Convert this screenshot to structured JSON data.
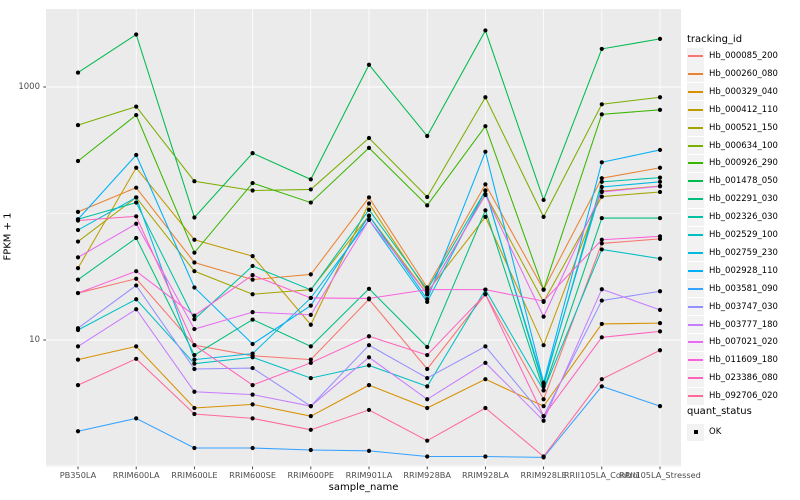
{
  "figure": {
    "legend": {
      "tracking_title": "tracking_id",
      "quant_title": "quant_status",
      "quant_ok_label": "OK"
    },
    "colors": {
      "panel_background": "#EBEBEB",
      "gridline": "#FFFFFF",
      "point": "#000000",
      "tick_text": "#4D4D4D",
      "legend_key_background": "#F2F2F2"
    }
  },
  "chart_data": {
    "type": "line",
    "title": "",
    "xlabel": "sample_name",
    "ylabel": "FPKM + 1",
    "y_scale": "log10",
    "ylim": [
      1,
      4100
    ],
    "y_ticks": [
      {
        "label": "1000",
        "value": 1000
      },
      {
        "label": "10",
        "value": 10
      }
    ],
    "grid": true,
    "legend_position": "right",
    "quant_status_value": "OK",
    "categories": [
      "PB350LA",
      "RRIM600LA",
      "RRIM600LE",
      "RRIM600SE",
      "RRIM600PE",
      "RRIM901LA",
      "RRIM928BA",
      "RRIM928LA",
      "RRIM928LE",
      "RRII105LA_Control",
      "RRII105LA_Stressed"
    ],
    "series": [
      {
        "name": "Hb_000085_200",
        "color": "#F8766D",
        "values": [
          23.5,
          30.5,
          9.1,
          7.5,
          7.0,
          21,
          5.9,
          23,
          3.4,
          58,
          63
        ]
      },
      {
        "name": "Hb_000260_080",
        "color": "#EA8331",
        "values": [
          103,
          160,
          41,
          30,
          33,
          134,
          26,
          170,
          25,
          190,
          230
        ]
      },
      {
        "name": "Hb_000329_040",
        "color": "#D89000",
        "values": [
          7.0,
          8.9,
          2.9,
          3.1,
          2.5,
          4.4,
          2.9,
          4.9,
          3.0,
          13.4,
          13.6
        ]
      },
      {
        "name": "Hb_000412_110",
        "color": "#C09B00",
        "values": [
          37,
          230,
          62,
          46,
          13.2,
          120,
          24,
          94,
          9.1,
          150,
          165
        ]
      },
      {
        "name": "Hb_000521_150",
        "color": "#A3A500",
        "values": [
          60,
          134,
          35,
          23,
          25,
          96,
          23,
          142,
          20,
          136,
          148
        ]
      },
      {
        "name": "Hb_000634_100",
        "color": "#7CAE00",
        "values": [
          500,
          700,
          180,
          152,
          155,
          395,
          135,
          830,
          94,
          730,
          830
        ]
      },
      {
        "name": "Hb_000926_290",
        "color": "#39B600",
        "values": [
          260,
          600,
          49,
          174,
          122,
          330,
          116,
          490,
          25,
          608,
          660
        ]
      },
      {
        "name": "Hb_001478_050",
        "color": "#00BB4E",
        "values": [
          1300,
          2600,
          93,
          300,
          186,
          1500,
          410,
          2800,
          128,
          2000,
          2400
        ]
      },
      {
        "name": "Hb_002291_030",
        "color": "#00BF7D",
        "values": [
          30,
          64,
          7.6,
          14.5,
          8.9,
          25.4,
          8.8,
          106,
          4.0,
          92,
          92
        ]
      },
      {
        "name": "Hb_002326_030",
        "color": "#00C1A3",
        "values": [
          90,
          122,
          14.6,
          38.5,
          24.9,
          107,
          25,
          152,
          4.3,
          178,
          192
        ]
      },
      {
        "name": "Hb_002529_100",
        "color": "#00BFC4",
        "values": [
          12,
          21,
          6.5,
          7.3,
          5.0,
          6.3,
          4.3,
          25,
          4.0,
          52,
          44
        ]
      },
      {
        "name": "Hb_002759_230",
        "color": "#00BAE0",
        "values": [
          74,
          134,
          7.0,
          7.8,
          21.5,
          89,
          20,
          152,
          4.5,
          162,
          178
        ]
      },
      {
        "name": "Hb_002928_110",
        "color": "#00B0F6",
        "values": [
          90,
          290,
          26,
          9.3,
          18.7,
          96,
          21,
          308,
          4.6,
          254,
          318
        ]
      },
      {
        "name": "Hb_003581_090",
        "color": "#35A2FF",
        "values": [
          1.9,
          2.4,
          1.4,
          1.4,
          1.35,
          1.33,
          1.2,
          1.2,
          1.18,
          4.3,
          3.0
        ]
      },
      {
        "name": "Hb_003747_030",
        "color": "#9590FF",
        "values": [
          12.4,
          27,
          5.9,
          6.0,
          3.0,
          9.1,
          5.0,
          8.9,
          2.5,
          20.5,
          24.3
        ]
      },
      {
        "name": "Hb_003777_180",
        "color": "#C77CFF",
        "values": [
          8.9,
          17.5,
          3.9,
          3.7,
          3.0,
          7.3,
          3.4,
          6.6,
          2.3,
          25.2,
          17.3
        ]
      },
      {
        "name": "Hb_007021_020",
        "color": "#E76BF3",
        "values": [
          45,
          83,
          12.2,
          16.6,
          15.8,
          89,
          23,
          140,
          15.3,
          148,
          164
        ]
      },
      {
        "name": "Hb_011609_180",
        "color": "#FA62DB",
        "values": [
          23.5,
          35,
          15.6,
          32.6,
          21.5,
          21.3,
          25,
          25,
          20.3,
          62,
          66
        ]
      },
      {
        "name": "Hb_023386_080",
        "color": "#FF62BC",
        "values": [
          88,
          95,
          9.1,
          4.4,
          6.6,
          10.7,
          7.6,
          23,
          2.5,
          10.5,
          11.7
        ]
      },
      {
        "name": "Hb_092706_020",
        "color": "#FF6A98",
        "values": [
          4.4,
          7.1,
          2.6,
          2.4,
          1.95,
          2.8,
          1.6,
          2.9,
          1.2,
          4.9,
          8.3
        ]
      }
    ]
  }
}
